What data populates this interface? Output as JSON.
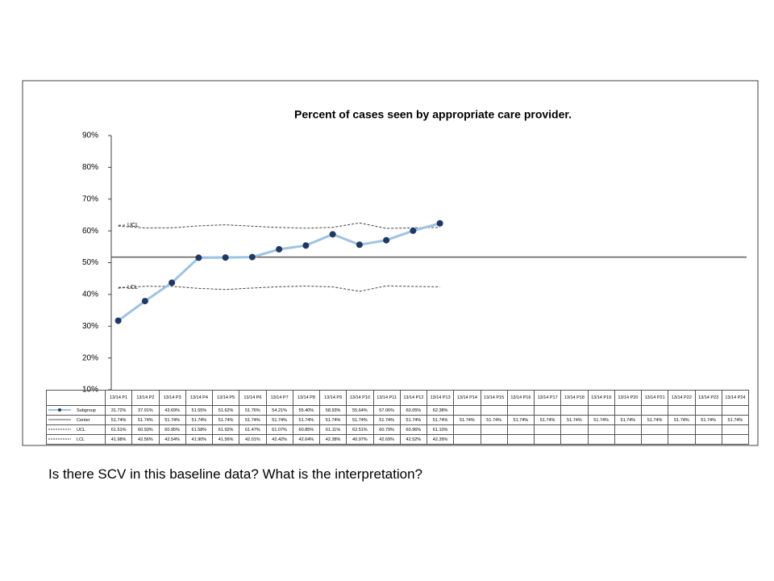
{
  "chart_data": {
    "type": "line",
    "title": "Percent of cases seen by appropriate care provider.",
    "categories": [
      "13/14 P1",
      "13/14 P2",
      "13/14 P3",
      "13/14 P4",
      "13/14 P5",
      "13/14 P6",
      "13/14 P7",
      "13/14 P8",
      "13/14 P9",
      "13/14 P10",
      "13/14 P11",
      "13/14 P12",
      "13/14 P13",
      "13/14 P14",
      "13/14 P15",
      "13/14 P16",
      "13/14 P17",
      "13/14 P18",
      "13/14 P19",
      "13/14 P20",
      "13/14 P21",
      "13/14 P22",
      "13/14 P23",
      "13/14 P24"
    ],
    "ylim": [
      10,
      90
    ],
    "yticks": [
      {
        "value": 10,
        "label": "10%"
      },
      {
        "value": 20,
        "label": "20%"
      },
      {
        "value": 30,
        "label": "30%"
      },
      {
        "value": 40,
        "label": "40%"
      },
      {
        "value": 50,
        "label": "50%"
      },
      {
        "value": 60,
        "label": "60%"
      },
      {
        "value": 70,
        "label": "70%"
      },
      {
        "value": 80,
        "label": "80%"
      },
      {
        "value": 90,
        "label": "90%"
      }
    ],
    "series": [
      {
        "name": "Subgroup",
        "color": "#9dc3e6",
        "marker_color": "#1f3864",
        "line_style": "solid",
        "values": [
          31.72,
          37.91,
          43.69,
          51.55,
          51.62,
          51.76,
          54.21,
          55.4,
          58.93,
          55.64,
          57.06,
          60.05,
          62.38,
          null,
          null,
          null,
          null,
          null,
          null,
          null,
          null,
          null,
          null,
          null
        ],
        "value_labels": [
          "31.72%",
          "37.91%",
          "43.69%",
          "51.55%",
          "51.62%",
          "51.76%",
          "54.21%",
          "55.40%",
          "58.93%",
          "55.64%",
          "57.06%",
          "60.05%",
          "62.38%",
          null,
          null,
          null,
          null,
          null,
          null,
          null,
          null,
          null,
          null,
          null
        ]
      },
      {
        "name": "Center",
        "color": "#595959",
        "line_style": "solid",
        "values": [
          51.74,
          51.74,
          51.74,
          51.74,
          51.74,
          51.74,
          51.74,
          51.74,
          51.74,
          51.74,
          51.74,
          51.74,
          51.74,
          51.74,
          51.74,
          51.74,
          51.74,
          51.74,
          51.74,
          51.74,
          51.74,
          51.74,
          51.74,
          51.74
        ],
        "value_labels": [
          "51.74%",
          "51.74%",
          "51.74%",
          "51.74%",
          "51.74%",
          "51.74%",
          "51.74%",
          "51.74%",
          "51.74%",
          "51.74%",
          "51.74%",
          "51.74%",
          "51.74%",
          "51.74%",
          "51.74%",
          "51.74%",
          "51.74%",
          "51.74%",
          "51.74%",
          "51.74%",
          "51.74%",
          "51.74%",
          "51.74%",
          "51.74%"
        ]
      },
      {
        "name": "UCL",
        "color": "#404040",
        "line_style": "dashed",
        "values": [
          61.51,
          60.93,
          60.95,
          61.58,
          61.92,
          61.47,
          61.07,
          60.85,
          61.11,
          62.51,
          60.79,
          60.96,
          61.1,
          null,
          null,
          null,
          null,
          null,
          null,
          null,
          null,
          null,
          null,
          null
        ],
        "value_labels": [
          "61.51%",
          "60.93%",
          "60.95%",
          "61.58%",
          "61.92%",
          "61.47%",
          "61.07%",
          "60.85%",
          "61.11%",
          "62.51%",
          "60.79%",
          "60.96%",
          "61.10%",
          null,
          null,
          null,
          null,
          null,
          null,
          null,
          null,
          null,
          null,
          null
        ]
      },
      {
        "name": "LCL",
        "color": "#404040",
        "line_style": "dashed",
        "values": [
          41.98,
          42.56,
          42.54,
          41.9,
          41.56,
          42.01,
          42.42,
          42.64,
          42.38,
          40.97,
          42.69,
          42.52,
          42.39,
          null,
          null,
          null,
          null,
          null,
          null,
          null,
          null,
          null,
          null,
          null
        ],
        "value_labels": [
          "41.98%",
          "42.56%",
          "42.54%",
          "41.90%",
          "41.56%",
          "42.01%",
          "42.42%",
          "42.64%",
          "42.38%",
          "40.97%",
          "42.69%",
          "42.52%",
          "42.39%",
          null,
          null,
          null,
          null,
          null,
          null,
          null,
          null,
          null,
          null,
          null
        ]
      }
    ],
    "annotations": [
      "UCL",
      "LCL"
    ]
  },
  "caption": "Is there SCV in this baseline data? What is the interpretation?"
}
